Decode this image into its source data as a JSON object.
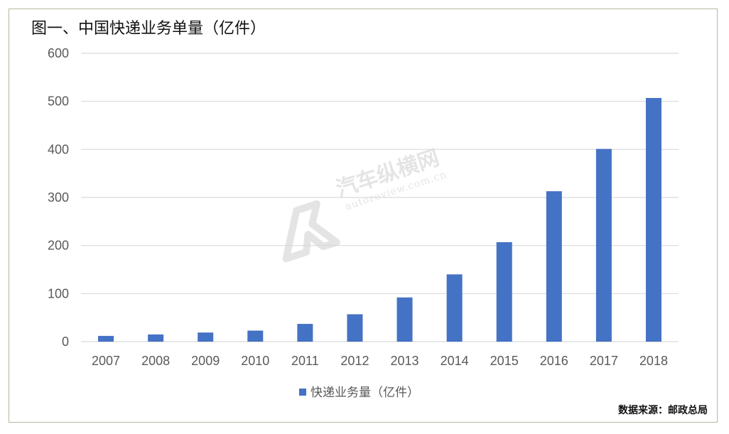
{
  "title": "图一、中国快递业务单量（亿件）",
  "source": "数据来源：邮政总局",
  "watermark": {
    "name": "汽车纵横网",
    "url": "autoreview.com.cn"
  },
  "colors": {
    "bar": "#4472c4",
    "grid": "#d9d9d9",
    "axis_text": "#595959",
    "frame": "#b9b59a"
  },
  "chart_data": {
    "type": "bar",
    "title": "图一、中国快递业务单量（亿件）",
    "xlabel": "",
    "ylabel": "",
    "categories": [
      "2007",
      "2008",
      "2009",
      "2010",
      "2011",
      "2012",
      "2013",
      "2014",
      "2015",
      "2016",
      "2017",
      "2018"
    ],
    "series": [
      {
        "name": "快递业务量（亿件）",
        "values": [
          12,
          15,
          19,
          23,
          37,
          57,
          92,
          140,
          207,
          313,
          401,
          507
        ]
      }
    ],
    "ylim": [
      0,
      600
    ],
    "yticks": [
      "0",
      "100",
      "200",
      "300",
      "400",
      "500",
      "600"
    ],
    "grid": true,
    "legend": "bottom-center"
  }
}
